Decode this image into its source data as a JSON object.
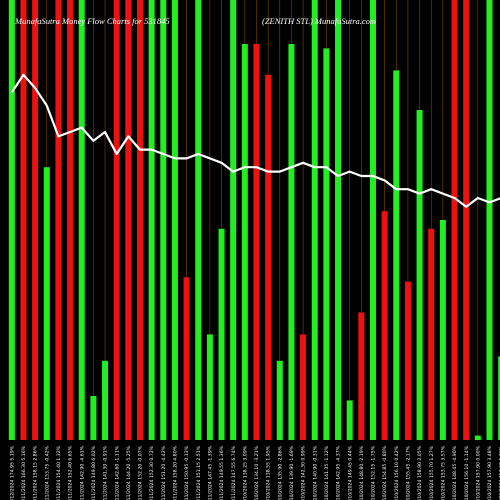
{
  "chart_data": {
    "type": "bar",
    "title_left": "MunafaSutra  Money Flow  Charts for 531845",
    "title_right": "(ZENITH STL) MunafaSutra.com",
    "colors": {
      "up": "#22ee22",
      "down": "#ee1111",
      "line": "#ffffff",
      "background": "#000000",
      "grid": "#7a4a00"
    },
    "ylim": [
      0,
      100
    ],
    "line_ylim": [
      0,
      100
    ],
    "bars": [
      {
        "color": "green",
        "value": 100
      },
      {
        "color": "red",
        "value": 100
      },
      {
        "color": "red",
        "value": 100
      },
      {
        "color": "green",
        "value": 62
      },
      {
        "color": "red",
        "value": 100
      },
      {
        "color": "red",
        "value": 100
      },
      {
        "color": "green",
        "value": 100
      },
      {
        "color": "green",
        "value": 10
      },
      {
        "color": "green",
        "value": 18
      },
      {
        "color": "red",
        "value": 100
      },
      {
        "color": "red",
        "value": 100
      },
      {
        "color": "red",
        "value": 100
      },
      {
        "color": "green",
        "value": 100
      },
      {
        "color": "green",
        "value": 100
      },
      {
        "color": "green",
        "value": 100
      },
      {
        "color": "red",
        "value": 37
      },
      {
        "color": "green",
        "value": 100
      },
      {
        "color": "green",
        "value": 24
      },
      {
        "color": "green",
        "value": 48
      },
      {
        "color": "green",
        "value": 100
      },
      {
        "color": "green",
        "value": 90
      },
      {
        "color": "red",
        "value": 90
      },
      {
        "color": "red",
        "value": 83
      },
      {
        "color": "green",
        "value": 18
      },
      {
        "color": "green",
        "value": 90
      },
      {
        "color": "red",
        "value": 24
      },
      {
        "color": "green",
        "value": 100
      },
      {
        "color": "green",
        "value": 89
      },
      {
        "color": "green",
        "value": 100
      },
      {
        "color": "green",
        "value": 9
      },
      {
        "color": "red",
        "value": 29
      },
      {
        "color": "green",
        "value": 100
      },
      {
        "color": "red",
        "value": 52
      },
      {
        "color": "green",
        "value": 84
      },
      {
        "color": "red",
        "value": 36
      },
      {
        "color": "green",
        "value": 75
      },
      {
        "color": "red",
        "value": 48
      },
      {
        "color": "green",
        "value": 50
      },
      {
        "color": "red",
        "value": 100
      },
      {
        "color": "red",
        "value": 100
      },
      {
        "color": "green",
        "value": 1
      },
      {
        "color": "green",
        "value": 100
      },
      {
        "color": "green",
        "value": 19
      }
    ],
    "line_values": [
      79,
      83,
      80,
      76,
      69,
      70,
      71,
      68,
      70,
      65,
      69,
      66,
      66,
      65,
      64,
      64,
      65,
      64,
      63,
      61,
      62,
      62,
      61,
      61,
      62,
      63,
      62,
      62,
      60,
      61,
      60,
      60,
      59,
      57,
      57,
      56,
      57,
      56,
      55,
      53,
      55,
      54,
      55
    ],
    "x_tick_labels": [
      "02/12/2024 174.95 5.19%",
      "29/11/2024 166.30 5.16%",
      "28/11/2024 158.15 2.86%",
      "27/11/2024 153.75 -0.42%",
      "26/11/2024 154.40 1.32%",
      "25/11/2024 152.40 6.65%",
      "22/11/2024 142.90 -4.61%",
      "21/11/2024 149.80 6.02%",
      "19/11/2024 141.30 -0.91%",
      "18/11/2024 142.60 -1.11%",
      "14/11/2024 144.20 -5.25%",
      "13/11/2024 152.20 -0.07%",
      "12/11/2024 152.30 0.72%",
      "11/11/2024 151.20 -4.42%",
      "08/11/2024 158.20 4.80%",
      "07/11/2024 150.95 -0.13%",
      "06/11/2024 151.15 2.51%",
      "05/11/2024 147.45 -1.39%",
      "04/11/2024 149.55 1.36%",
      "01/11/2024 147.55 6.74%",
      "31/10/2024 138.25 3.09%",
      "30/10/2024 134.10 -3.21%",
      "29/10/2024 138.55 1.95%",
      "28/10/2024 135.90 -2.86%",
      "25/10/2024 139.90 -1.69%",
      "24/10/2024 142.30 0.99%",
      "23/10/2024 140.90 -0.31%",
      "22/10/2024 141.35 -1.12%",
      "21/10/2024 142.95 -4.37%",
      "18/10/2024 149.45 0.44%",
      "17/10/2024 148.80 -2.19%",
      "16/10/2024 152.15 -1.75%",
      "15/10/2024 154.85 -0.80%",
      "14/10/2024 156.10 0.42%",
      "11/10/2024 155.45 -2.17%",
      "10/10/2024 158.90 2.05%",
      "09/10/2024 155.70 1.27%",
      "08/10/2024 153.75 3.57%",
      "07/10/2024 148.45 -4.90%",
      "04/10/2024 156.10 -1.14%",
      "03/10/2024 157.90 0.00%",
      "01/10/2024 157.90 3.48%",
      "30/09/2024 152.60 1.06%"
    ]
  }
}
